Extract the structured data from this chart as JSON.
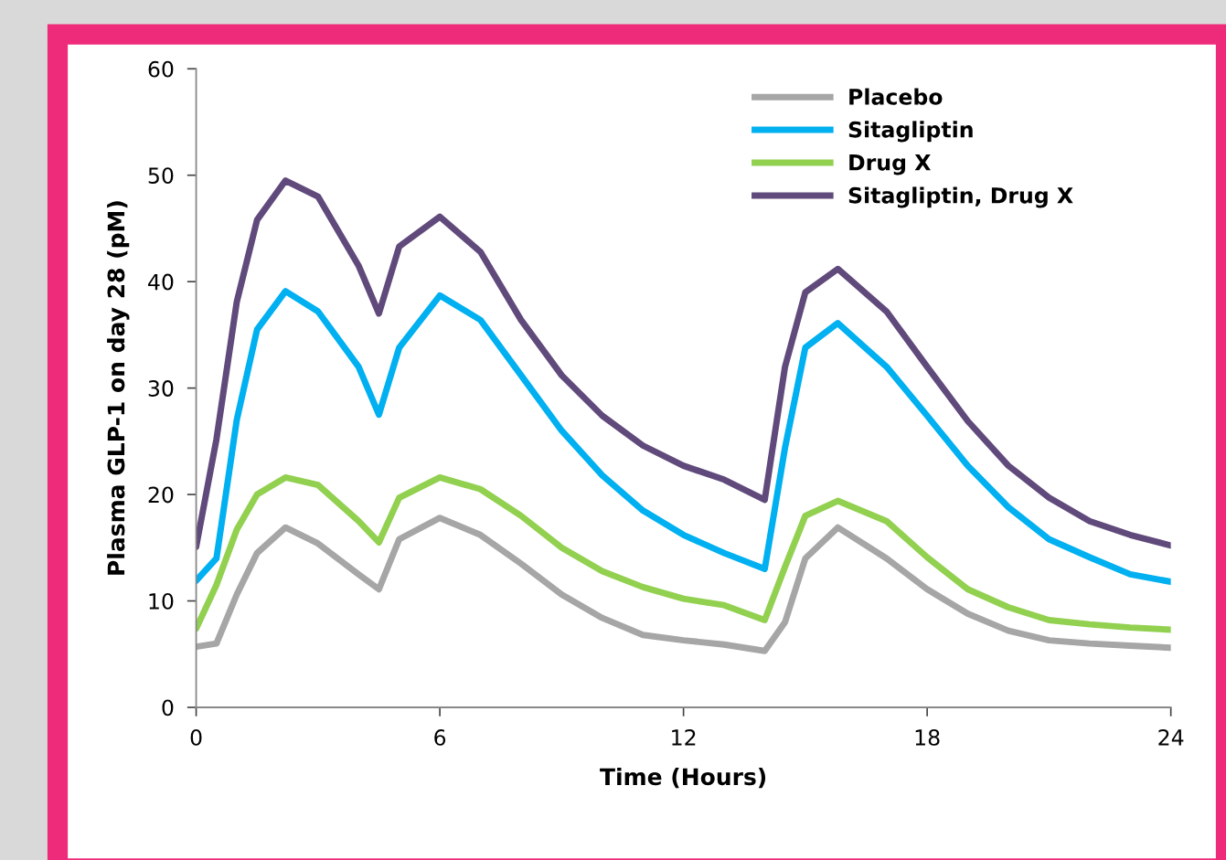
{
  "chart_data": {
    "type": "line",
    "xlabel": "Time (Hours)",
    "ylabel": "Plasma GLP-1 on day 28 (pM)",
    "xlim": [
      0,
      24
    ],
    "xticks": [
      0,
      6,
      12,
      18,
      24
    ],
    "ylim": [
      0,
      60
    ],
    "yticks": [
      0,
      10,
      20,
      30,
      40,
      50,
      60
    ],
    "grid": false,
    "legend": "top right",
    "marker": "none",
    "line_style": "solid",
    "x": [
      0,
      0.5,
      1,
      1.5,
      2.2,
      3,
      4,
      4.5,
      5,
      6,
      7,
      8,
      9,
      10,
      11,
      12,
      13,
      14,
      14.5,
      15,
      15.8,
      17,
      18,
      19,
      20,
      21,
      22,
      23,
      24
    ],
    "series": [
      {
        "name": "Placebo",
        "color": "#a6a6a6",
        "values": [
          5.7,
          6,
          10.6,
          14.5,
          16.9,
          15.4,
          12.5,
          11.1,
          15.8,
          17.8,
          16.2,
          13.5,
          10.6,
          8.4,
          6.8,
          6.3,
          5.9,
          5.3,
          8,
          14,
          16.9,
          14,
          11.1,
          8.8,
          7.2,
          6.3,
          6,
          5.8,
          5.6
        ]
      },
      {
        "name": "Sitagliptin",
        "color": "#00b0f0",
        "values": [
          11.9,
          14,
          27,
          35.5,
          39.1,
          37.2,
          32,
          27.5,
          33.8,
          38.7,
          36.4,
          31.2,
          26,
          21.8,
          18.5,
          16.2,
          14.5,
          13,
          24.4,
          33.8,
          36.1,
          32,
          27.4,
          22.7,
          18.8,
          15.8,
          14.1,
          12.5,
          11.8
        ]
      },
      {
        "name": "Drug X",
        "color": "#92d050",
        "values": [
          7.4,
          11.5,
          16.7,
          20,
          21.6,
          20.9,
          17.5,
          15.5,
          19.7,
          21.6,
          20.5,
          18,
          15,
          12.8,
          11.3,
          10.2,
          9.6,
          8.2,
          13.2,
          18,
          19.4,
          17.5,
          14.1,
          11.1,
          9.4,
          8.2,
          7.8,
          7.5,
          7.3
        ]
      },
      {
        "name": "Sitagliptin, Drug X",
        "color": "#604a7b",
        "values": [
          15.1,
          25.2,
          38.1,
          45.8,
          49.5,
          48,
          41.5,
          37,
          43.3,
          46.1,
          42.8,
          36.4,
          31.2,
          27.4,
          24.6,
          22.7,
          21.4,
          19.5,
          32,
          39,
          41.2,
          37.2,
          32,
          26.9,
          22.7,
          19.7,
          17.5,
          16.2,
          15.2
        ]
      }
    ]
  }
}
